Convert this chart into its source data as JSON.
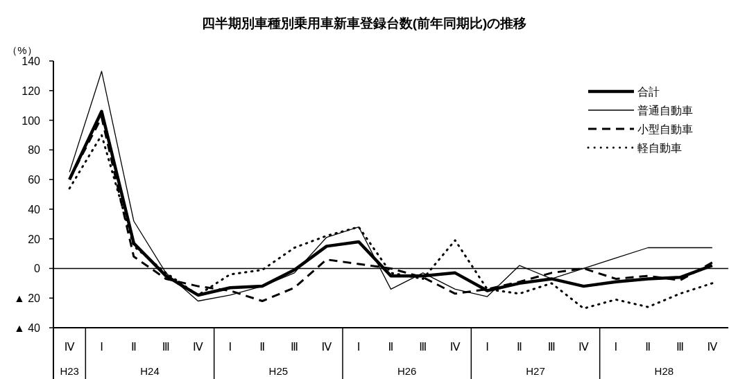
{
  "chart_data": {
    "type": "line",
    "title": "四半期別車種別乗用車新車登録台数(前年同期比)の推移",
    "ylabel": "（%）",
    "categories": [
      "Ⅳ",
      "Ⅰ",
      "Ⅱ",
      "Ⅲ",
      "Ⅳ",
      "Ⅰ",
      "Ⅱ",
      "Ⅲ",
      "Ⅳ",
      "Ⅰ",
      "Ⅱ",
      "Ⅲ",
      "Ⅳ",
      "Ⅰ",
      "Ⅱ",
      "Ⅲ",
      "Ⅳ",
      "Ⅰ",
      "Ⅱ",
      "Ⅲ",
      "Ⅳ"
    ],
    "annotations": [
      "H23",
      "H24",
      "H25",
      "H26",
      "H27",
      "H28"
    ],
    "series": [
      {
        "name": "合計",
        "color": "#000000",
        "line_style": "solid",
        "values": [
          60,
          106,
          17,
          -5,
          -18,
          -13,
          -12,
          -1,
          15,
          18,
          -5,
          -5,
          -3,
          -15,
          -10,
          -7,
          -12,
          -9,
          -7,
          -6,
          2
        ]
      },
      {
        "name": "普通自動車",
        "color": "#000000",
        "line_style": "solid",
        "values": [
          65,
          133,
          32,
          -3,
          -22,
          -18,
          -12,
          -3,
          21,
          28,
          -14,
          -3,
          -14,
          -19,
          2,
          -7,
          0,
          7,
          14,
          14,
          14
        ]
      },
      {
        "name": "小型自動車",
        "color": "#000000",
        "line_style": "dashed",
        "values": [
          60,
          102,
          8,
          -7,
          -12,
          -15,
          -22,
          -13,
          6,
          3,
          0,
          -6,
          -17,
          -14,
          -9,
          -3,
          0,
          -7,
          -5,
          -8,
          4
        ]
      },
      {
        "name": "軽自動車",
        "color": "#000000",
        "line_style": "dotted",
        "values": [
          54,
          90,
          15,
          -3,
          -18,
          -4,
          -1,
          14,
          22,
          28,
          -3,
          -7,
          19,
          -14,
          -17,
          -10,
          -27,
          -21,
          -26,
          -17,
          -10
        ]
      }
    ],
    "ylim": [
      -40,
      140
    ],
    "yticks": [
      {
        "value": -40,
        "label": "▲ 40"
      },
      {
        "value": -20,
        "label": "▲ 20"
      },
      0,
      20,
      40,
      60,
      80,
      100,
      120,
      140
    ],
    "ref_lines": [
      {
        "axis": "y",
        "value": 0
      }
    ],
    "legend": "top right",
    "grid": false
  }
}
